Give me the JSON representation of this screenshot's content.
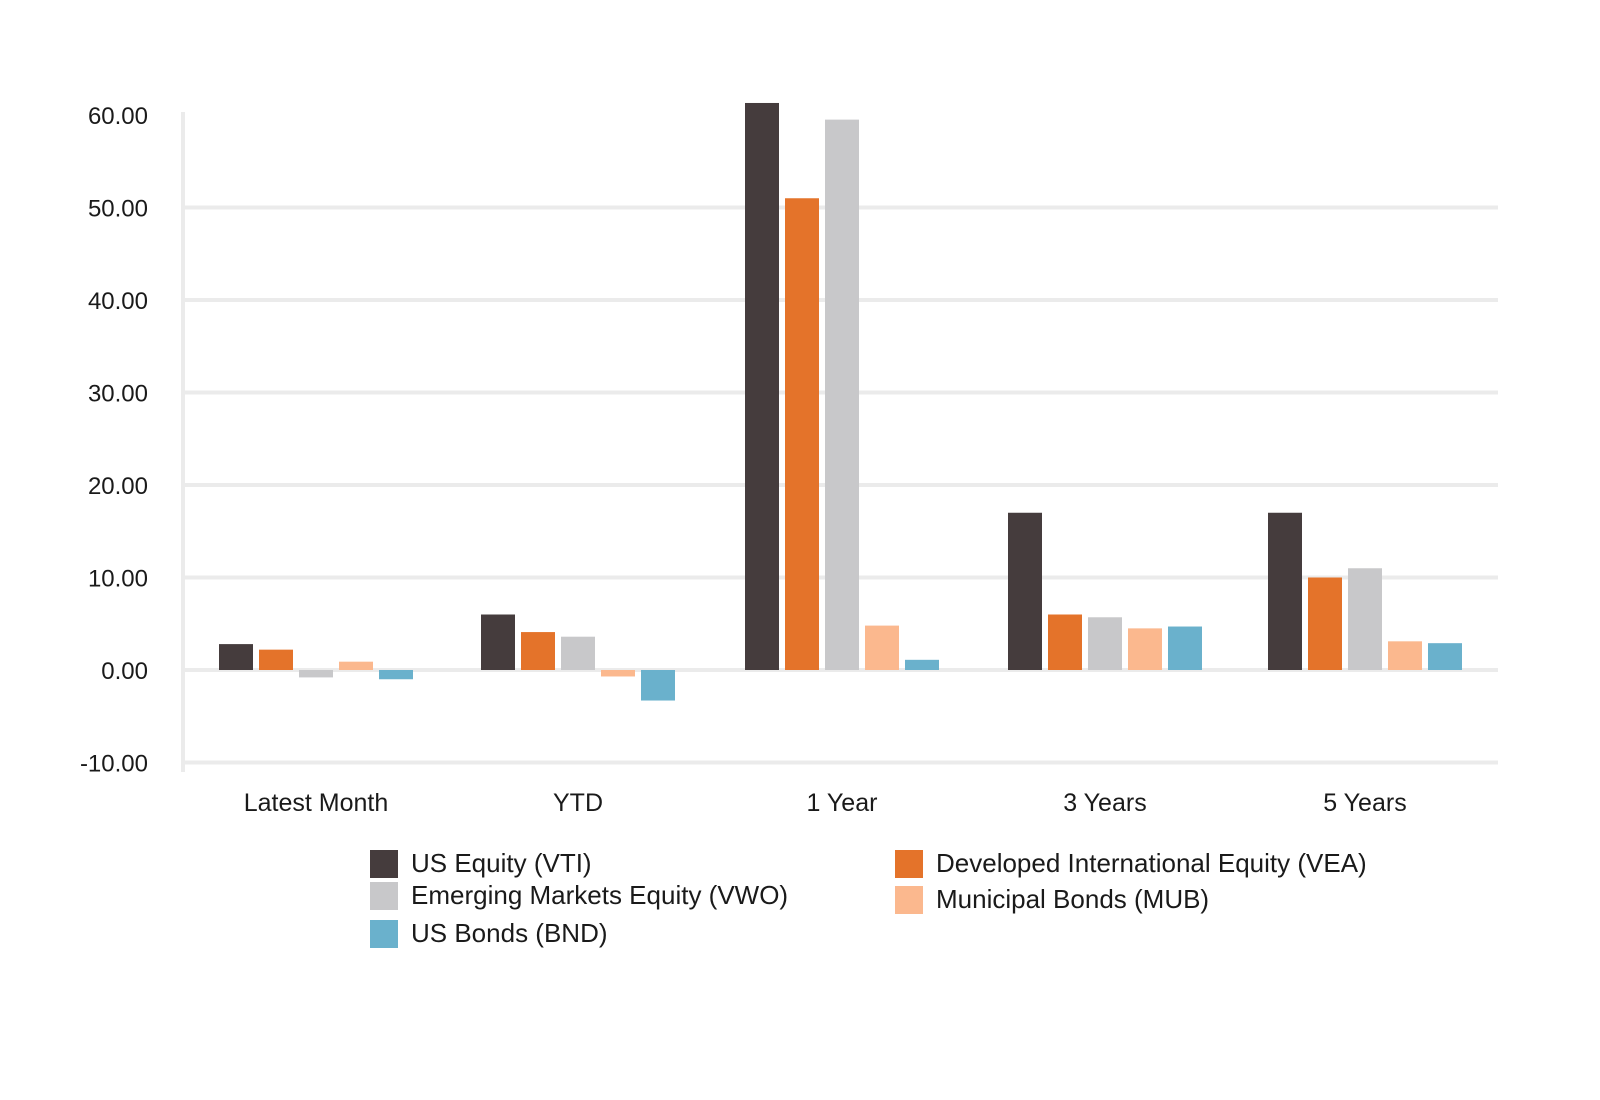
{
  "chart_data": {
    "type": "bar",
    "categories": [
      "Latest Month",
      "YTD",
      "1 Year",
      "3 Years",
      "5 Years"
    ],
    "series": [
      {
        "name": "US Equity (VTI)",
        "color": "#453c3d",
        "values": [
          2.8,
          6.0,
          61.3,
          17.0,
          17.0
        ]
      },
      {
        "name": "Developed International Equity (VEA)",
        "color": "#e4732a",
        "values": [
          2.2,
          4.1,
          51.0,
          6.0,
          10.0
        ]
      },
      {
        "name": "Emerging Markets Equity (VWO)",
        "color": "#c8c8ca",
        "values": [
          -0.8,
          3.6,
          59.5,
          5.7,
          11.0
        ]
      },
      {
        "name": "Municipal Bonds (MUB)",
        "color": "#fbb88e",
        "values": [
          0.9,
          -0.7,
          4.8,
          4.5,
          3.1
        ]
      },
      {
        "name": "US Bonds (BND)",
        "color": "#6ab1cc",
        "values": [
          -1.0,
          -3.3,
          1.1,
          4.7,
          2.9
        ]
      }
    ],
    "y_ticks": [
      "60.00",
      "50.00",
      "40.00",
      "30.00",
      "20.00",
      "10.00",
      "0.00",
      "-10.00"
    ],
    "ylim": [
      -10,
      61.3
    ],
    "title": "",
    "xlabel": "",
    "ylabel": "",
    "grid": true,
    "legend_position": "bottom"
  }
}
